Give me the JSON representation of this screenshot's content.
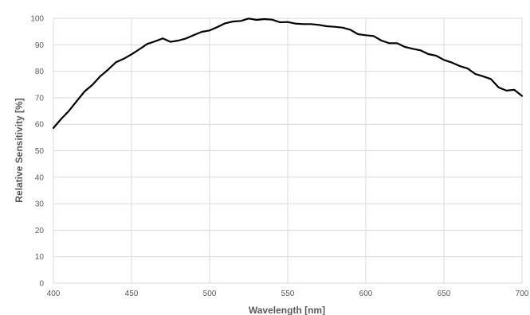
{
  "chart_data": {
    "type": "line",
    "title": "",
    "xlabel": "Wavelength [nm]",
    "ylabel": "Relative Sensitivity [%]",
    "xlim": [
      400,
      700
    ],
    "ylim": [
      0,
      100
    ],
    "x_ticks": [
      400,
      450,
      500,
      550,
      600,
      650,
      700
    ],
    "y_ticks": [
      0,
      10,
      20,
      30,
      40,
      50,
      60,
      70,
      80,
      90,
      100
    ],
    "grid": true,
    "legend": "none",
    "series": [
      {
        "color": "#000000",
        "points": [
          [
            400,
            58.6
          ],
          [
            405,
            62.0
          ],
          [
            410,
            65.1
          ],
          [
            415,
            68.8
          ],
          [
            420,
            72.4
          ],
          [
            425,
            74.9
          ],
          [
            430,
            78.1
          ],
          [
            435,
            80.6
          ],
          [
            440,
            83.4
          ],
          [
            445,
            84.7
          ],
          [
            450,
            86.4
          ],
          [
            455,
            88.3
          ],
          [
            460,
            90.3
          ],
          [
            465,
            91.3
          ],
          [
            470,
            92.4
          ],
          [
            475,
            91.1
          ],
          [
            480,
            91.6
          ],
          [
            485,
            92.4
          ],
          [
            490,
            93.7
          ],
          [
            495,
            94.9
          ],
          [
            500,
            95.4
          ],
          [
            505,
            96.7
          ],
          [
            510,
            98.1
          ],
          [
            515,
            98.8
          ],
          [
            520,
            99.0
          ],
          [
            525,
            99.9
          ],
          [
            530,
            99.4
          ],
          [
            535,
            99.7
          ],
          [
            540,
            99.5
          ],
          [
            545,
            98.5
          ],
          [
            550,
            98.6
          ],
          [
            555,
            98.0
          ],
          [
            560,
            97.8
          ],
          [
            565,
            97.8
          ],
          [
            570,
            97.5
          ],
          [
            575,
            97.0
          ],
          [
            580,
            96.8
          ],
          [
            585,
            96.5
          ],
          [
            590,
            95.7
          ],
          [
            595,
            94.0
          ],
          [
            600,
            93.6
          ],
          [
            605,
            93.3
          ],
          [
            610,
            91.6
          ],
          [
            615,
            90.6
          ],
          [
            620,
            90.6
          ],
          [
            625,
            89.2
          ],
          [
            630,
            88.5
          ],
          [
            635,
            87.9
          ],
          [
            640,
            86.5
          ],
          [
            645,
            85.9
          ],
          [
            650,
            84.3
          ],
          [
            655,
            83.3
          ],
          [
            660,
            82.0
          ],
          [
            665,
            81.1
          ],
          [
            670,
            79.0
          ],
          [
            675,
            78.1
          ],
          [
            680,
            77.1
          ],
          [
            685,
            73.9
          ],
          [
            690,
            72.7
          ],
          [
            695,
            73.0
          ],
          [
            700,
            70.7
          ]
        ]
      }
    ]
  }
}
